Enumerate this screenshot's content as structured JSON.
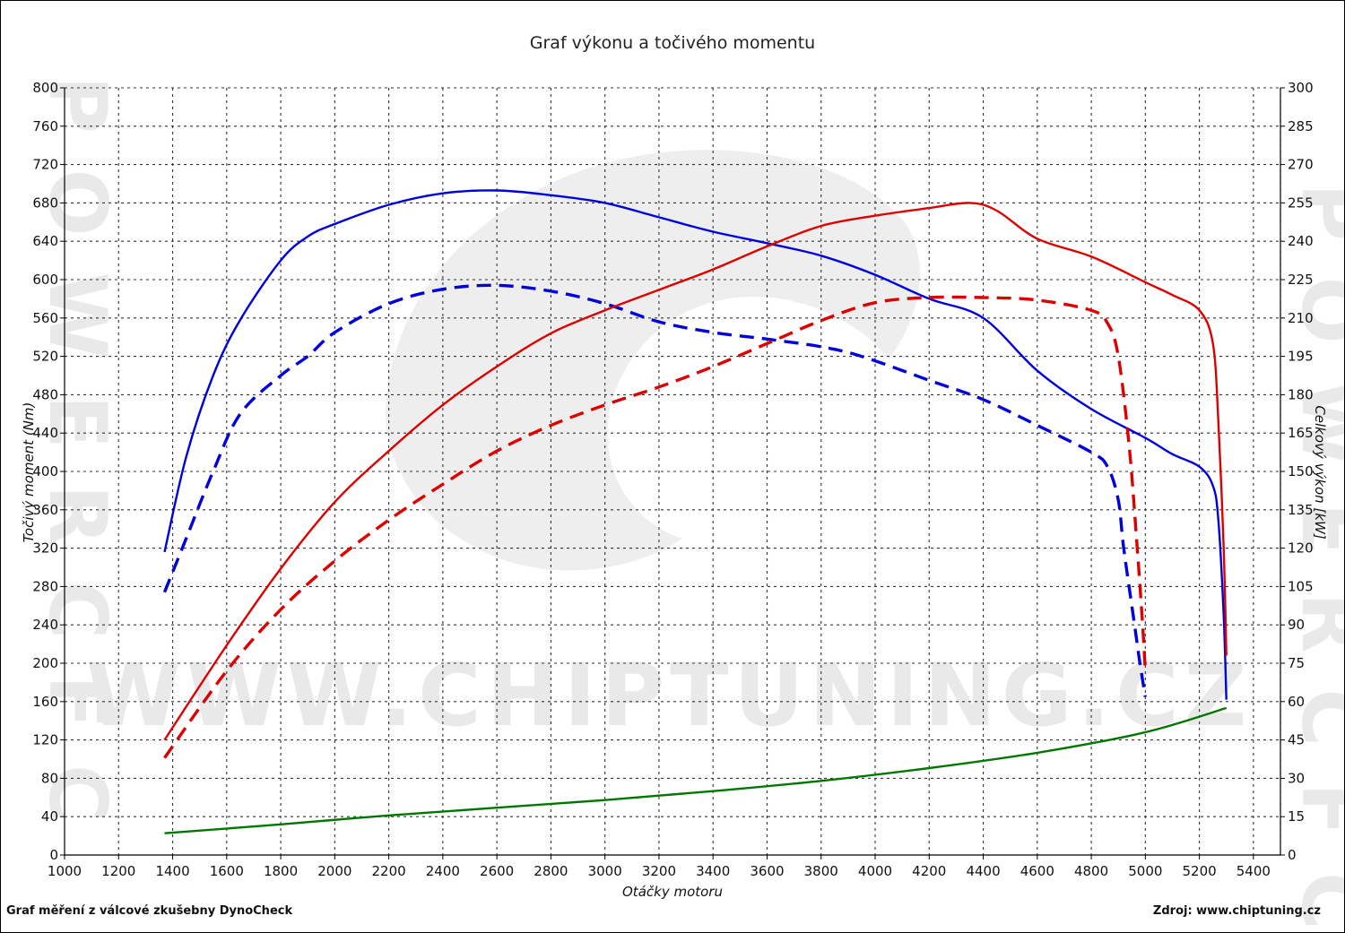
{
  "chart_data": {
    "type": "line",
    "title": "Graf výkonu a točivého momentu",
    "xlabel": "Otáčky motoru",
    "ylabel_left": "Točivý moment (Nm)",
    "ylabel_right": "Celkový výkon [kW]",
    "xlim": [
      1000,
      5500
    ],
    "ylim_left": [
      0,
      800
    ],
    "ylim_right": [
      0,
      300
    ],
    "x_ticks": [
      1000,
      1200,
      1400,
      1600,
      1800,
      2000,
      2200,
      2400,
      2600,
      2800,
      3000,
      3200,
      3400,
      3600,
      3800,
      4000,
      4200,
      4400,
      4600,
      4800,
      5000,
      5200,
      5400
    ],
    "y_ticks_left": [
      0,
      40,
      80,
      120,
      160,
      200,
      240,
      280,
      320,
      360,
      400,
      440,
      480,
      520,
      560,
      600,
      640,
      680,
      720,
      760,
      800
    ],
    "y_ticks_right": [
      0,
      15,
      30,
      45,
      60,
      75,
      90,
      105,
      120,
      135,
      150,
      165,
      180,
      195,
      210,
      225,
      240,
      255,
      270,
      285,
      300
    ],
    "grid": true,
    "series": [
      {
        "axis": "left",
        "color": "#0000dd",
        "style": "solid",
        "points": [
          [
            1370,
            316
          ],
          [
            1450,
            415
          ],
          [
            1550,
            500
          ],
          [
            1650,
            558
          ],
          [
            1800,
            620
          ],
          [
            1900,
            645
          ],
          [
            2000,
            658
          ],
          [
            2200,
            678
          ],
          [
            2400,
            690
          ],
          [
            2600,
            693
          ],
          [
            2800,
            688
          ],
          [
            3000,
            680
          ],
          [
            3200,
            665
          ],
          [
            3400,
            650
          ],
          [
            3600,
            638
          ],
          [
            3800,
            625
          ],
          [
            4000,
            605
          ],
          [
            4200,
            580
          ],
          [
            4400,
            560
          ],
          [
            4600,
            505
          ],
          [
            4800,
            465
          ],
          [
            5000,
            435
          ],
          [
            5100,
            418
          ],
          [
            5200,
            405
          ],
          [
            5250,
            385
          ],
          [
            5270,
            350
          ],
          [
            5290,
            250
          ],
          [
            5300,
            162
          ]
        ]
      },
      {
        "axis": "left",
        "color": "#0000dd",
        "style": "dashed",
        "points": [
          [
            1370,
            274
          ],
          [
            1450,
            330
          ],
          [
            1550,
            400
          ],
          [
            1650,
            460
          ],
          [
            1800,
            500
          ],
          [
            1900,
            520
          ],
          [
            2000,
            545
          ],
          [
            2200,
            575
          ],
          [
            2400,
            590
          ],
          [
            2600,
            594
          ],
          [
            2800,
            588
          ],
          [
            3000,
            575
          ],
          [
            3200,
            556
          ],
          [
            3400,
            545
          ],
          [
            3600,
            538
          ],
          [
            3800,
            530
          ],
          [
            3950,
            520
          ],
          [
            4200,
            495
          ],
          [
            4400,
            475
          ],
          [
            4600,
            448
          ],
          [
            4800,
            420
          ],
          [
            4860,
            405
          ],
          [
            4900,
            370
          ],
          [
            4920,
            320
          ],
          [
            4960,
            240
          ],
          [
            4980,
            200
          ],
          [
            5000,
            165
          ]
        ]
      },
      {
        "axis": "right",
        "color": "#dd0000",
        "style": "solid",
        "points": [
          [
            1370,
            45
          ],
          [
            1600,
            82
          ],
          [
            1800,
            112
          ],
          [
            2000,
            138
          ],
          [
            2200,
            158
          ],
          [
            2400,
            176
          ],
          [
            2600,
            191
          ],
          [
            2800,
            204
          ],
          [
            3000,
            213
          ],
          [
            3200,
            221
          ],
          [
            3400,
            229
          ],
          [
            3600,
            238
          ],
          [
            3800,
            246
          ],
          [
            4000,
            250
          ],
          [
            4200,
            253
          ],
          [
            4350,
            255
          ],
          [
            4450,
            252
          ],
          [
            4600,
            241
          ],
          [
            4800,
            234
          ],
          [
            5000,
            224
          ],
          [
            5100,
            219
          ],
          [
            5200,
            213
          ],
          [
            5250,
            200
          ],
          [
            5270,
            170
          ],
          [
            5290,
            120
          ],
          [
            5300,
            78
          ]
        ]
      },
      {
        "axis": "right",
        "color": "#dd0000",
        "style": "dashed",
        "points": [
          [
            1370,
            38
          ],
          [
            1600,
            72
          ],
          [
            1800,
            96
          ],
          [
            2000,
            115
          ],
          [
            2200,
            131
          ],
          [
            2400,
            145
          ],
          [
            2600,
            158
          ],
          [
            2800,
            168
          ],
          [
            3000,
            176
          ],
          [
            3200,
            183
          ],
          [
            3400,
            191
          ],
          [
            3600,
            200
          ],
          [
            3800,
            209
          ],
          [
            4000,
            216
          ],
          [
            4200,
            218
          ],
          [
            4400,
            218
          ],
          [
            4600,
            217
          ],
          [
            4800,
            213
          ],
          [
            4860,
            208
          ],
          [
            4900,
            195
          ],
          [
            4940,
            160
          ],
          [
            4970,
            120
          ],
          [
            4990,
            90
          ],
          [
            5000,
            72
          ]
        ]
      },
      {
        "axis": "right",
        "color": "#007700",
        "style": "solid",
        "points": [
          [
            1370,
            8.5
          ],
          [
            1800,
            12
          ],
          [
            2200,
            15.5
          ],
          [
            2600,
            18.5
          ],
          [
            3000,
            21.5
          ],
          [
            3400,
            25
          ],
          [
            3800,
            29
          ],
          [
            4200,
            34
          ],
          [
            4600,
            40
          ],
          [
            5000,
            48
          ],
          [
            5300,
            57.5
          ]
        ]
      }
    ]
  },
  "watermark": {
    "site": "WWW.CHIPTUNING.CZ",
    "left_vertical": "POWERCFC",
    "right_vertical": "POWERCFC"
  },
  "footer": {
    "left": "Graf měření z válcové zkušebny DynoCheck",
    "right": "Zdroj: www.chiptuning.cz"
  }
}
